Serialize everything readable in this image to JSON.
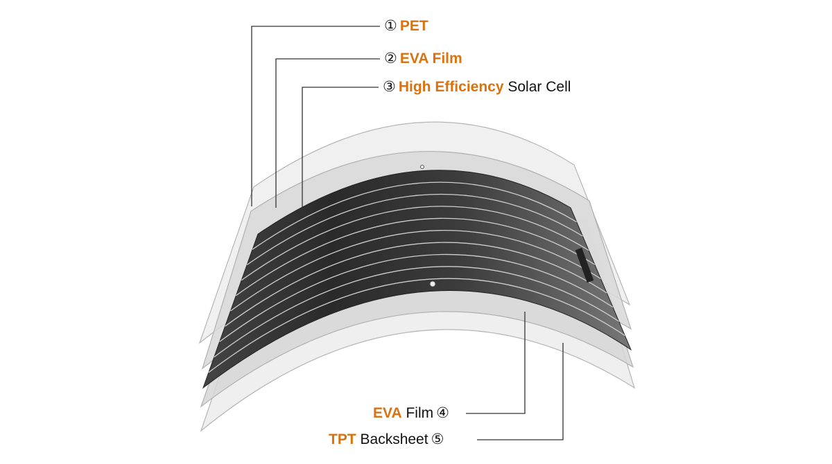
{
  "colors": {
    "highlight": "#d9720f",
    "text": "#111111",
    "leader": "#333333",
    "cell": "#3a3a3a",
    "film": "#dcdcdc"
  },
  "labels": [
    {
      "num": "①",
      "highlight": "PET",
      "rest": ""
    },
    {
      "num": "②",
      "highlight": "EVA Film",
      "rest": ""
    },
    {
      "num": "③",
      "highlight": "High Efficiency",
      "rest": "Solar Cell"
    },
    {
      "num": "④",
      "highlight": "EVA",
      "rest": "Film"
    },
    {
      "num": "⑤",
      "highlight": "TPT",
      "rest": "Backsheet"
    }
  ]
}
